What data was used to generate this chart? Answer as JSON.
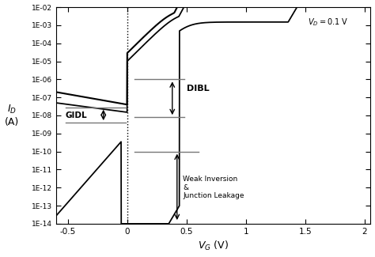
{
  "xlim": [
    -0.6,
    2.05
  ],
  "ylim_log": [
    -14,
    -2
  ],
  "dotted_x": 0.0,
  "background_color": "#ffffff",
  "gray_color": "#777777",
  "ytick_labels": [
    "1E-14",
    "1E-13",
    "1E-12",
    "1E-11",
    "1E-10",
    "1E-09",
    "1E-08",
    "1E-07",
    "1E-06",
    "1E-05",
    "1E-04",
    "1E-03",
    "1E-02"
  ],
  "xtick_vals": [
    -0.5,
    0,
    0.5,
    1,
    1.5,
    2
  ],
  "xtick_labels": [
    "-0.5",
    "0",
    "0.5",
    "1",
    "1.5",
    "2"
  ]
}
